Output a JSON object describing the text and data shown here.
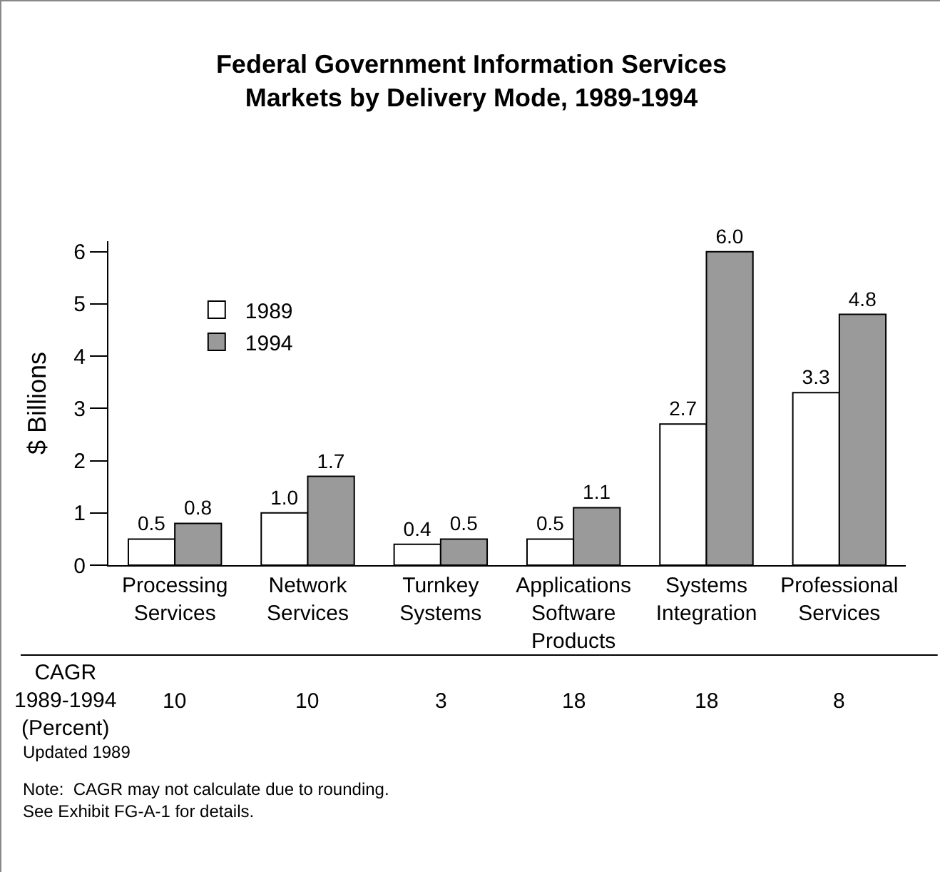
{
  "chart_data": {
    "type": "bar",
    "title": "Federal Government Information Services\nMarkets by Delivery Mode, 1989-1994",
    "ylabel": "$ Billions",
    "categories": [
      "Processing Services",
      "Network Services",
      "Turnkey Systems",
      "Applications Software Products",
      "Systems Integration",
      "Professional Services"
    ],
    "series": [
      {
        "name": "1989",
        "color": "#ffffff",
        "values": [
          0.5,
          1.0,
          0.4,
          0.5,
          2.7,
          3.3
        ],
        "value_labels": [
          "0.5",
          "1.0",
          "0.4",
          "0.5",
          "2.7",
          "3.3"
        ]
      },
      {
        "name": "1994",
        "color": "#9a9a9a",
        "values": [
          0.8,
          1.7,
          0.5,
          1.1,
          6.0,
          4.8
        ],
        "value_labels": [
          "0.8",
          "1.7",
          "0.5",
          "1.1",
          "6.0",
          "4.8"
        ]
      }
    ],
    "ylim": [
      0,
      6.2
    ],
    "yticks": [
      0,
      1,
      2,
      3,
      4,
      5,
      6
    ],
    "grid": false,
    "legend": "top left",
    "annotations": [
      "CAGR\n1989-1994\n(Percent)",
      "10",
      "10",
      "3",
      "18",
      "18",
      "8",
      "Updated 1989",
      "Note:  CAGR may not calculate due to rounding.\nSee Exhibit FG-A-1 for details."
    ]
  }
}
